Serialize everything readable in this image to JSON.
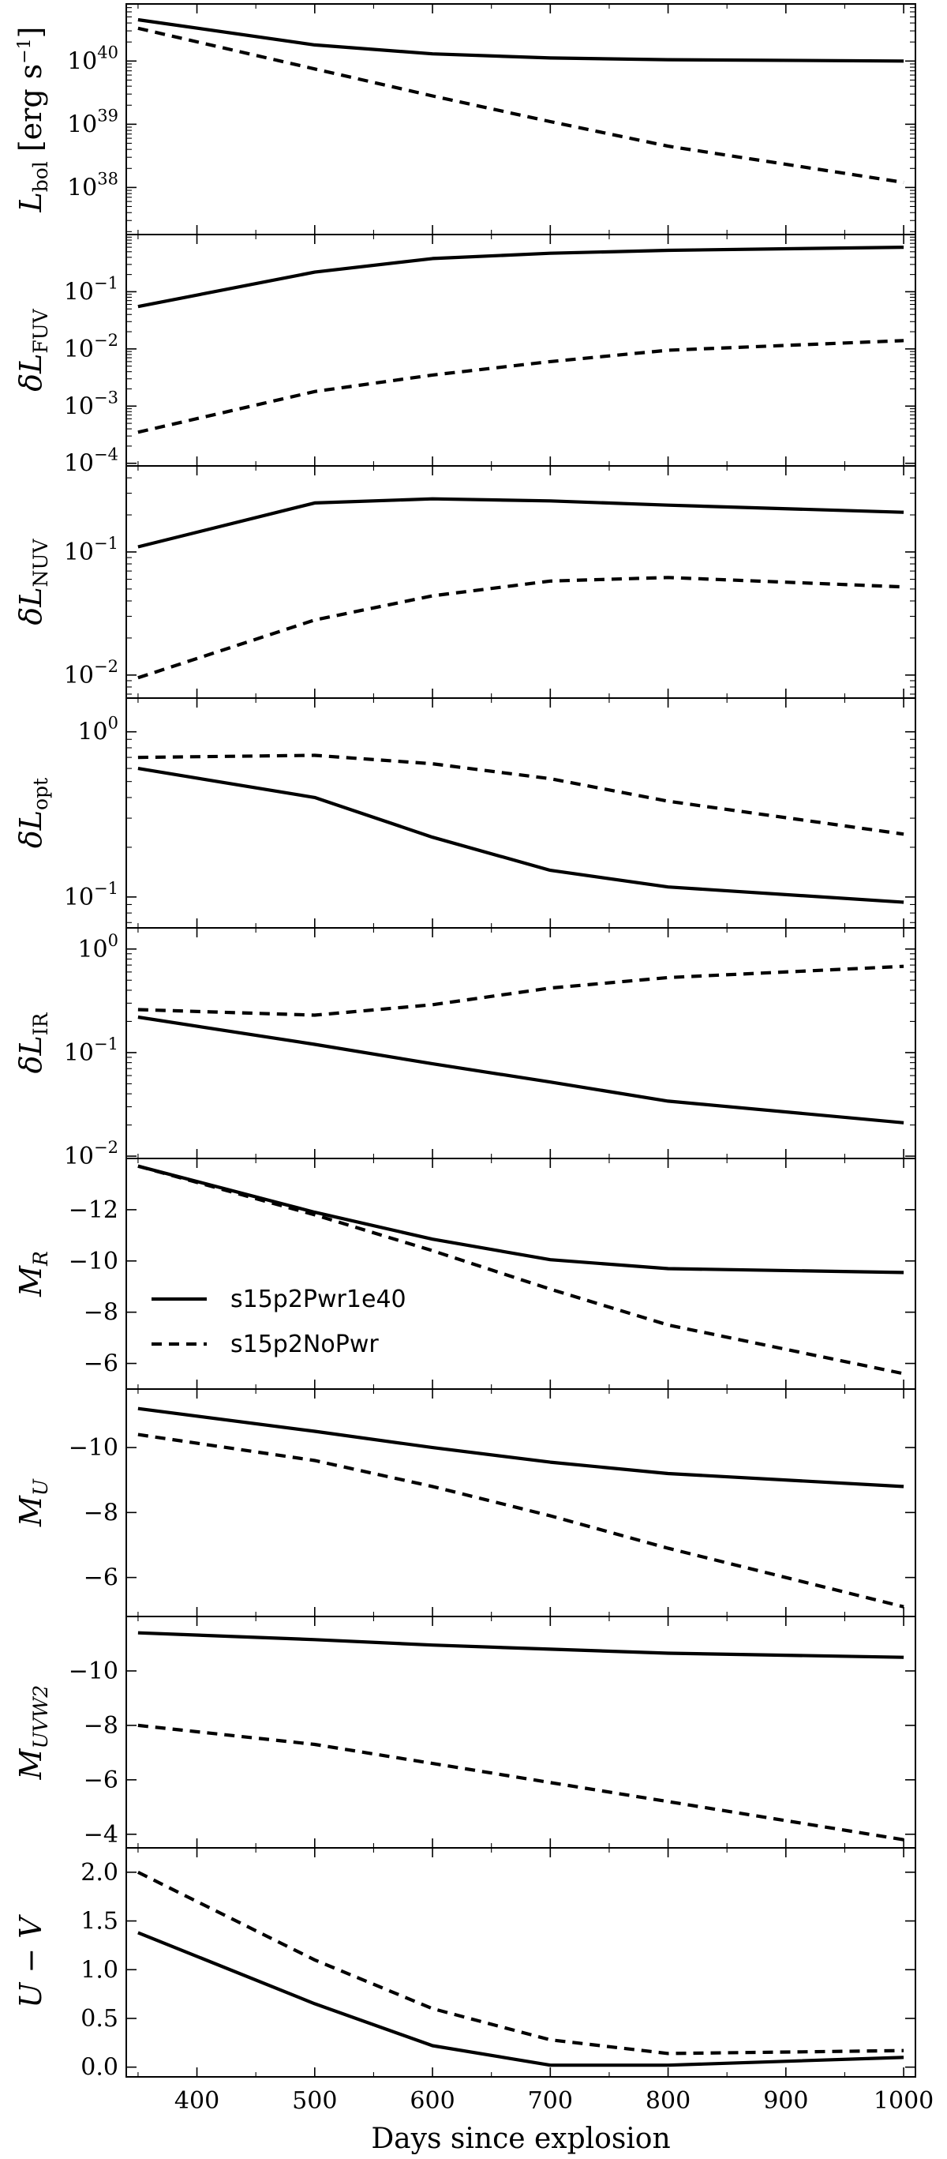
{
  "chart_data": {
    "type": "line",
    "xlabel": "Days since explosion",
    "xlim": [
      340,
      1010
    ],
    "xticks": [
      400,
      500,
      600,
      700,
      800,
      900,
      1000
    ],
    "x": [
      350,
      500,
      600,
      700,
      800,
      1000
    ],
    "legend": {
      "placement": "center-left of panel 6",
      "entries": [
        "s15p2Pwr1e40",
        "s15p2NoPwr"
      ]
    },
    "panels": [
      {
        "id": "lbol",
        "ylabel_main": "L",
        "ylabel_sub": "bol",
        "ylabel_unit": " [erg s",
        "scale": "log",
        "ylim": [
          1.8e+37,
          8e+40
        ],
        "yticks": [
          {
            "v": 1e+38,
            "base": "10",
            "exp": "38"
          },
          {
            "v": 1e+39,
            "base": "10",
            "exp": "39"
          },
          {
            "v": 1e+40,
            "base": "10",
            "exp": "40"
          }
        ],
        "series": [
          {
            "name": "s15p2Pwr1e40",
            "style": "solid",
            "values": [
              4.5e+40,
              1.8e+40,
              1.3e+40,
              1.12e+40,
              1.05e+40,
              1e+40
            ]
          },
          {
            "name": "s15p2NoPwr",
            "style": "dashed",
            "values": [
              3.3e+40,
              7.5e+39,
              2.8e+39,
              1.1e+39,
              4.5e+38,
              1.2e+38
            ]
          }
        ]
      },
      {
        "id": "dlfuv",
        "ylabel_main": "δL",
        "ylabel_sub": "FUV",
        "scale": "log",
        "ylim": [
          9e-05,
          1.0
        ],
        "yticks": [
          {
            "v": 0.0001,
            "base": "10",
            "exp": "−4"
          },
          {
            "v": 0.001,
            "base": "10",
            "exp": "−3"
          },
          {
            "v": 0.01,
            "base": "10",
            "exp": "−2"
          },
          {
            "v": 0.1,
            "base": "10",
            "exp": "−1"
          }
        ],
        "series": [
          {
            "name": "s15p2Pwr1e40",
            "style": "solid",
            "values": [
              0.055,
              0.22,
              0.38,
              0.47,
              0.53,
              0.6
            ]
          },
          {
            "name": "s15p2NoPwr",
            "style": "dashed",
            "values": [
              0.00035,
              0.0018,
              0.0035,
              0.006,
              0.0095,
              0.014
            ]
          }
        ]
      },
      {
        "id": "dlnuv",
        "ylabel_main": "δL",
        "ylabel_sub": "NUV",
        "scale": "log",
        "ylim": [
          0.0065,
          0.5
        ],
        "yticks": [
          {
            "v": 0.01,
            "base": "10",
            "exp": "−2"
          },
          {
            "v": 0.1,
            "base": "10",
            "exp": "−1"
          }
        ],
        "series": [
          {
            "name": "s15p2Pwr1e40",
            "style": "solid",
            "values": [
              0.11,
              0.25,
              0.27,
              0.26,
              0.24,
              0.21
            ]
          },
          {
            "name": "s15p2NoPwr",
            "style": "dashed",
            "values": [
              0.0095,
              0.028,
              0.044,
              0.058,
              0.062,
              0.052
            ]
          }
        ]
      },
      {
        "id": "dlopt",
        "ylabel_main": "δL",
        "ylabel_sub": "opt",
        "scale": "log",
        "ylim": [
          0.065,
          1.6
        ],
        "yticks": [
          {
            "v": 0.1,
            "base": "10",
            "exp": "−1"
          },
          {
            "v": 1.0,
            "base": "10",
            "exp": "0"
          }
        ],
        "series": [
          {
            "name": "s15p2Pwr1e40",
            "style": "solid",
            "values": [
              0.6,
              0.4,
              0.23,
              0.145,
              0.115,
              0.093
            ]
          },
          {
            "name": "s15p2NoPwr",
            "style": "dashed",
            "values": [
              0.7,
              0.72,
              0.64,
              0.52,
              0.38,
              0.24
            ]
          }
        ]
      },
      {
        "id": "dlir",
        "ylabel_main": "δL",
        "ylabel_sub": "IR",
        "scale": "log",
        "ylim": [
          0.0095,
          1.6
        ],
        "yticks": [
          {
            "v": 0.01,
            "base": "10",
            "exp": "−2"
          },
          {
            "v": 0.1,
            "base": "10",
            "exp": "−1"
          },
          {
            "v": 1.0,
            "base": "10",
            "exp": "0"
          }
        ],
        "series": [
          {
            "name": "s15p2Pwr1e40",
            "style": "solid",
            "values": [
              0.22,
              0.12,
              0.078,
              0.052,
              0.034,
              0.021
            ]
          },
          {
            "name": "s15p2NoPwr",
            "style": "dashed",
            "values": [
              0.26,
              0.23,
              0.29,
              0.42,
              0.53,
              0.68
            ]
          }
        ]
      },
      {
        "id": "mr",
        "ylabel_main": "M",
        "ylabel_sub": "R",
        "italic_sub": true,
        "scale": "linear",
        "ylim": [
          -14.0,
          -5.0
        ],
        "inverted": true,
        "yticks": [
          {
            "v": -12,
            "label": "−12"
          },
          {
            "v": -10,
            "label": "−10"
          },
          {
            "v": -8,
            "label": "−8"
          },
          {
            "v": -6,
            "label": "−6"
          }
        ],
        "legend": true,
        "series": [
          {
            "name": "s15p2Pwr1e40",
            "style": "solid",
            "values": [
              -13.7,
              -11.9,
              -10.85,
              -10.05,
              -9.7,
              -9.55
            ]
          },
          {
            "name": "s15p2NoPwr",
            "style": "dashed",
            "values": [
              -13.7,
              -11.8,
              -10.4,
              -8.9,
              -7.5,
              -5.6
            ]
          }
        ]
      },
      {
        "id": "mu",
        "ylabel_main": "M",
        "ylabel_sub": "U",
        "italic_sub": true,
        "scale": "linear",
        "ylim": [
          -11.8,
          -4.8
        ],
        "inverted": true,
        "yticks": [
          {
            "v": -10,
            "label": "−10"
          },
          {
            "v": -8,
            "label": "−8"
          },
          {
            "v": -6,
            "label": "−6"
          }
        ],
        "series": [
          {
            "name": "s15p2Pwr1e40",
            "style": "solid",
            "values": [
              -11.2,
              -10.5,
              -10.0,
              -9.55,
              -9.2,
              -8.8
            ]
          },
          {
            "name": "s15p2NoPwr",
            "style": "dashed",
            "values": [
              -10.4,
              -9.6,
              -8.8,
              -7.9,
              -6.9,
              -5.1
            ]
          }
        ]
      },
      {
        "id": "muvw2",
        "ylabel_main": "M",
        "ylabel_sub": "UVW2",
        "italic_sub": true,
        "scale": "linear",
        "ylim": [
          -12.0,
          -3.5
        ],
        "inverted": true,
        "yticks": [
          {
            "v": -10,
            "label": "−10"
          },
          {
            "v": -8,
            "label": "−8"
          },
          {
            "v": -6,
            "label": "−6"
          },
          {
            "v": -4,
            "label": "−4"
          }
        ],
        "series": [
          {
            "name": "s15p2Pwr1e40",
            "style": "solid",
            "values": [
              -11.4,
              -11.15,
              -10.95,
              -10.8,
              -10.65,
              -10.5
            ]
          },
          {
            "name": "s15p2NoPwr",
            "style": "dashed",
            "values": [
              -8.0,
              -7.3,
              -6.6,
              -5.9,
              -5.2,
              -3.8
            ]
          }
        ]
      },
      {
        "id": "uv",
        "ylabel_main": "U − V",
        "ylabel_sub": "",
        "italic_main": true,
        "scale": "linear",
        "ylim": [
          -0.1,
          2.25
        ],
        "inverted": false,
        "yticks": [
          {
            "v": 0.0,
            "label": "0.0"
          },
          {
            "v": 0.5,
            "label": "0.5"
          },
          {
            "v": 1.0,
            "label": "1.0"
          },
          {
            "v": 1.5,
            "label": "1.5"
          },
          {
            "v": 2.0,
            "label": "2.0"
          }
        ],
        "series": [
          {
            "name": "s15p2Pwr1e40",
            "style": "solid",
            "values": [
              1.38,
              0.65,
              0.22,
              0.02,
              0.02,
              0.1
            ]
          },
          {
            "name": "s15p2NoPwr",
            "style": "dashed",
            "values": [
              2.0,
              1.1,
              0.6,
              0.28,
              0.14,
              0.17
            ]
          }
        ]
      }
    ]
  }
}
